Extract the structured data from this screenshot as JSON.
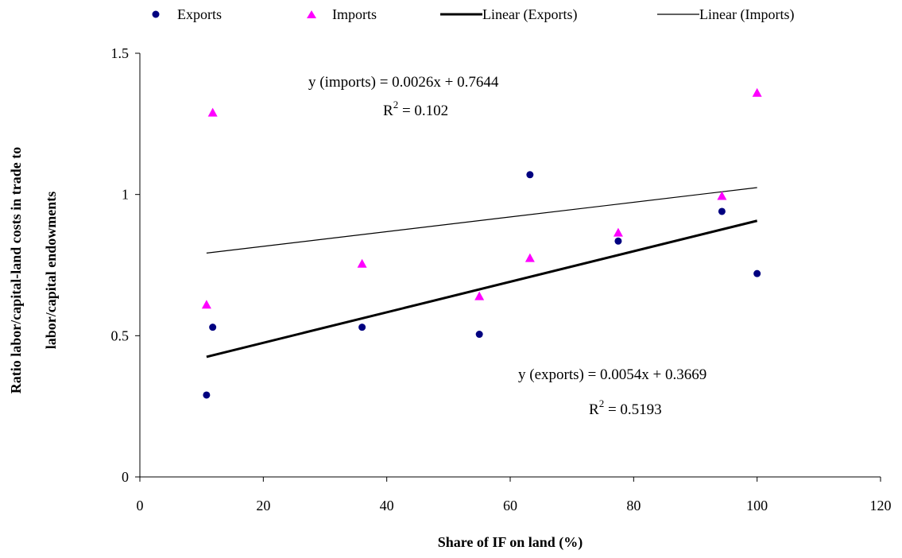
{
  "chart_data": {
    "type": "scatter",
    "xlabel": "Share of IF on land (%)",
    "ylabel": "Ratio labor/capital-land costs in trade to labor/capital endowments",
    "ylabel_lines": [
      "Ratio labor/capital-land costs in trade to",
      "labor/capital endowments"
    ],
    "xlim": [
      0,
      120
    ],
    "ylim": [
      0,
      1.5
    ],
    "x_ticks": [
      "0",
      "20",
      "40",
      "60",
      "80",
      "100",
      "120"
    ],
    "y_ticks": [
      "0",
      "0.5",
      "1",
      "1.5"
    ],
    "grid": false,
    "legend_position": "top",
    "series": [
      {
        "name": "Exports",
        "marker": "circle",
        "color": "#000080",
        "x": [
          10.8,
          11.8,
          36.0,
          55.0,
          63.2,
          77.5,
          94.3,
          100.0
        ],
        "y": [
          0.29,
          0.53,
          0.53,
          0.505,
          1.07,
          0.835,
          0.94,
          0.72
        ]
      },
      {
        "name": "Imports",
        "marker": "triangle",
        "color": "#FF00FF",
        "x": [
          10.8,
          11.8,
          36.0,
          55.0,
          63.2,
          77.5,
          94.3,
          100.0
        ],
        "y": [
          0.61,
          1.29,
          0.755,
          0.64,
          0.775,
          0.865,
          0.995,
          1.36
        ]
      }
    ],
    "trendlines": [
      {
        "name": "Linear (Exports)",
        "slope": 0.0054,
        "intercept": 0.3669,
        "x_range": [
          10.8,
          100.0
        ],
        "style": "thick"
      },
      {
        "name": "Linear (Imports)",
        "slope": 0.0026,
        "intercept": 0.7644,
        "x_range": [
          10.8,
          100.0
        ],
        "style": "thin"
      }
    ],
    "annotations": {
      "imports_eq": "y (imports) = 0.0026x + 0.7644",
      "imports_r2_base": "R",
      "imports_r2_sup": "2",
      "imports_r2_val": " = 0.102",
      "exports_eq": "y (exports) = 0.0054x + 0.3669",
      "exports_r2_base": "R",
      "exports_r2_sup": "2",
      "exports_r2_val": " = 0.5193"
    }
  }
}
